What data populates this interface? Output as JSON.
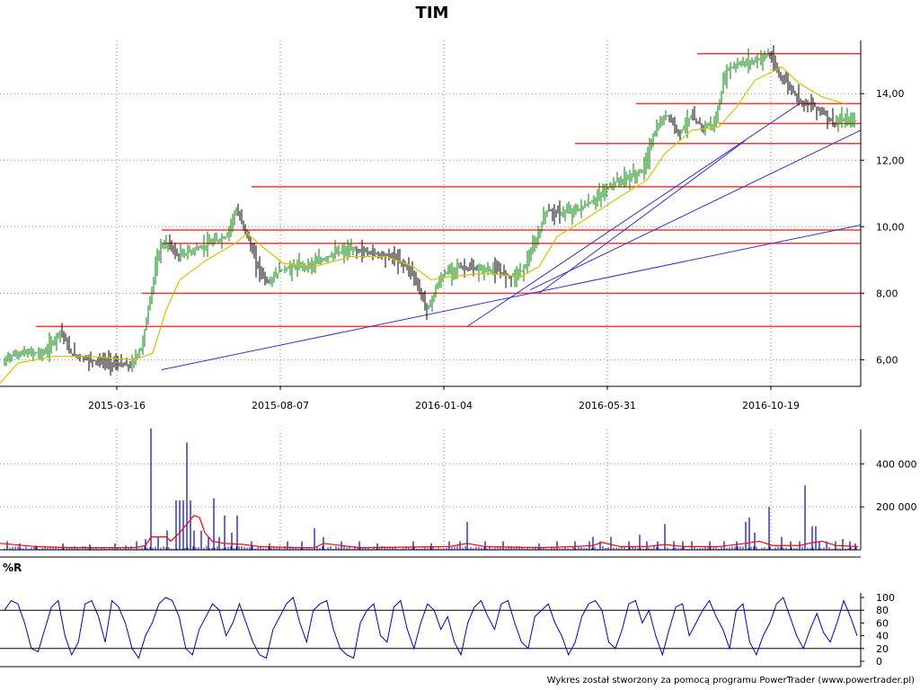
{
  "chart_data": [
    {
      "type": "candlestick",
      "title": "TIM",
      "x_tick_labels": [
        "2015-03-16",
        "2015-08-07",
        "2016-01-04",
        "2016-05-31",
        "2016-10-19"
      ],
      "y_tick_labels": [
        "6,00",
        "8,00",
        "10,00",
        "12,00",
        "14,00"
      ],
      "y_ticks": [
        6,
        8,
        10,
        12,
        14
      ],
      "ylim": [
        5.2,
        15.6
      ],
      "grid": true,
      "price_path": [
        [
          0,
          5.6
        ],
        [
          8,
          6.1
        ],
        [
          25,
          6.2
        ],
        [
          50,
          6.2
        ],
        [
          68,
          6.9
        ],
        [
          78,
          6.2
        ],
        [
          100,
          6.0
        ],
        [
          125,
          5.9
        ],
        [
          145,
          5.8
        ],
        [
          158,
          6.4
        ],
        [
          168,
          8.0
        ],
        [
          178,
          9.4
        ],
        [
          188,
          9.5
        ],
        [
          198,
          9.1
        ],
        [
          215,
          9.3
        ],
        [
          235,
          9.5
        ],
        [
          252,
          9.7
        ],
        [
          262,
          10.5
        ],
        [
          272,
          10.0
        ],
        [
          285,
          8.9
        ],
        [
          298,
          8.3
        ],
        [
          312,
          8.7
        ],
        [
          332,
          8.8
        ],
        [
          352,
          8.9
        ],
        [
          372,
          9.2
        ],
        [
          395,
          9.3
        ],
        [
          418,
          9.2
        ],
        [
          438,
          9.1
        ],
        [
          458,
          8.7
        ],
        [
          468,
          8.0
        ],
        [
          476,
          7.5
        ],
        [
          486,
          8.2
        ],
        [
          495,
          8.6
        ],
        [
          510,
          8.8
        ],
        [
          530,
          8.7
        ],
        [
          550,
          8.7
        ],
        [
          570,
          8.5
        ],
        [
          582,
          8.7
        ],
        [
          596,
          9.5
        ],
        [
          608,
          10.5
        ],
        [
          622,
          10.4
        ],
        [
          642,
          10.5
        ],
        [
          662,
          10.8
        ],
        [
          682,
          11.3
        ],
        [
          702,
          11.5
        ],
        [
          716,
          11.7
        ],
        [
          728,
          12.8
        ],
        [
          742,
          13.4
        ],
        [
          756,
          12.8
        ],
        [
          768,
          13.3
        ],
        [
          782,
          13.0
        ],
        [
          796,
          13.1
        ],
        [
          808,
          14.7
        ],
        [
          822,
          14.9
        ],
        [
          842,
          15.0
        ],
        [
          856,
          15.2
        ],
        [
          866,
          14.6
        ],
        [
          874,
          14.4
        ],
        [
          890,
          13.8
        ],
        [
          900,
          13.7
        ],
        [
          914,
          13.5
        ],
        [
          928,
          13.1
        ],
        [
          940,
          13.2
        ]
      ],
      "moving_average_path": [
        [
          0,
          5.3
        ],
        [
          20,
          5.9
        ],
        [
          60,
          6.1
        ],
        [
          100,
          6.1
        ],
        [
          150,
          6.0
        ],
        [
          170,
          6.2
        ],
        [
          185,
          7.5
        ],
        [
          200,
          8.4
        ],
        [
          230,
          9.0
        ],
        [
          262,
          9.5
        ],
        [
          275,
          9.8
        ],
        [
          292,
          9.4
        ],
        [
          315,
          8.9
        ],
        [
          350,
          8.8
        ],
        [
          390,
          9.1
        ],
        [
          430,
          9.1
        ],
        [
          460,
          8.8
        ],
        [
          480,
          8.4
        ],
        [
          500,
          8.5
        ],
        [
          540,
          8.6
        ],
        [
          580,
          8.5
        ],
        [
          600,
          8.8
        ],
        [
          620,
          9.7
        ],
        [
          650,
          10.2
        ],
        [
          690,
          10.9
        ],
        [
          720,
          11.4
        ],
        [
          740,
          12.2
        ],
        [
          770,
          12.9
        ],
        [
          800,
          13.0
        ],
        [
          820,
          13.6
        ],
        [
          840,
          14.4
        ],
        [
          870,
          14.8
        ],
        [
          890,
          14.3
        ],
        [
          915,
          13.9
        ],
        [
          940,
          13.7
        ]
      ],
      "horizontal_levels": [
        {
          "value": 7.0,
          "from": 40
        },
        {
          "value": 8.0,
          "from": 158
        },
        {
          "value": 9.5,
          "from": 180
        },
        {
          "value": 9.9,
          "from": 180
        },
        {
          "value": 11.2,
          "from": 280
        },
        {
          "value": 12.5,
          "from": 640
        },
        {
          "value": 13.1,
          "from": 800
        },
        {
          "value": 13.7,
          "from": 708
        },
        {
          "value": 15.2,
          "from": 776
        }
      ],
      "trend_lines": [
        {
          "from": [
            180,
            5.7
          ],
          "to": [
            958,
            10.05
          ]
        },
        {
          "from": [
            520,
            7.0
          ],
          "to": [
            890,
            13.7
          ]
        },
        {
          "from": [
            590,
            8.1
          ],
          "to": [
            958,
            12.9
          ]
        },
        {
          "from": [
            600,
            8.0
          ],
          "to": [
            830,
            12.6
          ]
        }
      ],
      "colors": {
        "up": "#008000",
        "down": "#000000",
        "ma": "#d4c400",
        "level": "#ff3333",
        "trend": "#3333cc",
        "grid": "#888888"
      }
    },
    {
      "type": "bar",
      "y_tick_labels": [
        "200 000",
        "400 000"
      ],
      "y_ticks": [
        200000,
        400000
      ],
      "ylim": [
        0,
        560000
      ],
      "spikes": [
        [
          8,
          40000
        ],
        [
          22,
          30000
        ],
        [
          40,
          20000
        ],
        [
          70,
          30000
        ],
        [
          100,
          25000
        ],
        [
          128,
          30000
        ],
        [
          140,
          20000
        ],
        [
          152,
          40000
        ],
        [
          162,
          50000
        ],
        [
          168,
          565000
        ],
        [
          176,
          60000
        ],
        [
          186,
          90000
        ],
        [
          196,
          230000
        ],
        [
          200,
          230000
        ],
        [
          204,
          230000
        ],
        [
          208,
          500000
        ],
        [
          212,
          230000
        ],
        [
          216,
          90000
        ],
        [
          224,
          90000
        ],
        [
          232,
          60000
        ],
        [
          238,
          240000
        ],
        [
          244,
          60000
        ],
        [
          250,
          160000
        ],
        [
          258,
          80000
        ],
        [
          264,
          160000
        ],
        [
          280,
          40000
        ],
        [
          300,
          30000
        ],
        [
          320,
          40000
        ],
        [
          336,
          40000
        ],
        [
          350,
          100000
        ],
        [
          360,
          60000
        ],
        [
          380,
          40000
        ],
        [
          400,
          40000
        ],
        [
          420,
          30000
        ],
        [
          460,
          40000
        ],
        [
          480,
          30000
        ],
        [
          500,
          40000
        ],
        [
          512,
          40000
        ],
        [
          520,
          130000
        ],
        [
          540,
          40000
        ],
        [
          560,
          40000
        ],
        [
          600,
          30000
        ],
        [
          620,
          40000
        ],
        [
          640,
          40000
        ],
        [
          656,
          40000
        ],
        [
          660,
          60000
        ],
        [
          668,
          40000
        ],
        [
          680,
          60000
        ],
        [
          700,
          40000
        ],
        [
          712,
          70000
        ],
        [
          720,
          40000
        ],
        [
          732,
          40000
        ],
        [
          740,
          120000
        ],
        [
          750,
          40000
        ],
        [
          760,
          40000
        ],
        [
          770,
          40000
        ],
        [
          790,
          40000
        ],
        [
          806,
          40000
        ],
        [
          820,
          40000
        ],
        [
          830,
          130000
        ],
        [
          834,
          150000
        ],
        [
          840,
          80000
        ],
        [
          856,
          200000
        ],
        [
          870,
          60000
        ],
        [
          880,
          40000
        ],
        [
          890,
          40000
        ],
        [
          896,
          300000
        ],
        [
          904,
          110000
        ],
        [
          908,
          110000
        ],
        [
          912,
          40000
        ],
        [
          920,
          40000
        ],
        [
          930,
          40000
        ],
        [
          938,
          50000
        ],
        [
          946,
          40000
        ],
        [
          952,
          30000
        ]
      ],
      "ma_path": [
        [
          0,
          30000
        ],
        [
          40,
          15000
        ],
        [
          80,
          10000
        ],
        [
          120,
          10000
        ],
        [
          150,
          10000
        ],
        [
          162,
          20000
        ],
        [
          168,
          60000
        ],
        [
          185,
          60000
        ],
        [
          190,
          40000
        ],
        [
          200,
          80000
        ],
        [
          210,
          130000
        ],
        [
          216,
          160000
        ],
        [
          222,
          150000
        ],
        [
          228,
          80000
        ],
        [
          236,
          40000
        ],
        [
          250,
          30000
        ],
        [
          270,
          25000
        ],
        [
          290,
          15000
        ],
        [
          330,
          10000
        ],
        [
          350,
          10000
        ],
        [
          360,
          30000
        ],
        [
          380,
          20000
        ],
        [
          400,
          10000
        ],
        [
          500,
          15000
        ],
        [
          520,
          30000
        ],
        [
          540,
          15000
        ],
        [
          600,
          10000
        ],
        [
          640,
          15000
        ],
        [
          660,
          20000
        ],
        [
          670,
          35000
        ],
        [
          690,
          15000
        ],
        [
          720,
          15000
        ],
        [
          740,
          25000
        ],
        [
          760,
          15000
        ],
        [
          800,
          15000
        ],
        [
          830,
          30000
        ],
        [
          845,
          40000
        ],
        [
          860,
          20000
        ],
        [
          890,
          20000
        ],
        [
          900,
          30000
        ],
        [
          915,
          40000
        ],
        [
          930,
          20000
        ],
        [
          955,
          15000
        ]
      ],
      "colors": {
        "bars": "#0000cc",
        "ma": "#ff0000"
      }
    },
    {
      "type": "line",
      "title": "%R",
      "y_tick_labels": [
        "0",
        "20",
        "40",
        "60",
        "80",
        "100"
      ],
      "y_ticks": [
        0,
        20,
        40,
        60,
        80,
        100
      ],
      "ylim": [
        0,
        100
      ],
      "reference_lines": [
        20,
        80
      ],
      "series": [
        {
          "values": [
            80,
            95,
            90,
            60,
            20,
            15,
            50,
            85,
            95,
            40,
            10,
            30,
            90,
            95,
            70,
            30,
            95,
            85,
            60,
            20,
            5,
            40,
            60,
            90,
            100,
            95,
            70,
            20,
            10,
            50,
            70,
            90,
            80,
            40,
            60,
            90,
            60,
            30,
            10,
            5,
            50,
            70,
            90,
            100,
            60,
            30,
            80,
            90,
            95,
            50,
            20,
            10,
            5,
            60,
            80,
            90,
            40,
            30,
            85,
            95,
            50,
            20,
            60,
            90,
            80,
            50,
            70,
            30,
            10,
            60,
            85,
            95,
            70,
            50,
            90,
            95,
            60,
            30,
            20,
            70,
            80,
            90,
            60,
            40,
            10,
            30,
            70,
            90,
            95,
            80,
            30,
            20,
            50,
            90,
            95,
            60,
            80,
            40,
            10,
            50,
            85,
            90,
            40,
            60,
            80,
            95,
            70,
            50,
            20,
            80,
            90,
            30,
            10,
            40,
            60,
            90,
            100,
            70,
            40,
            20,
            50,
            75,
            45,
            30,
            60,
            95,
            70,
            40
          ]
        }
      ],
      "colors": {
        "line": "#0000cc"
      }
    }
  ],
  "footer": "Wykres został stworzony za pomocą programu PowerTrader (www.powertrader.pl)"
}
